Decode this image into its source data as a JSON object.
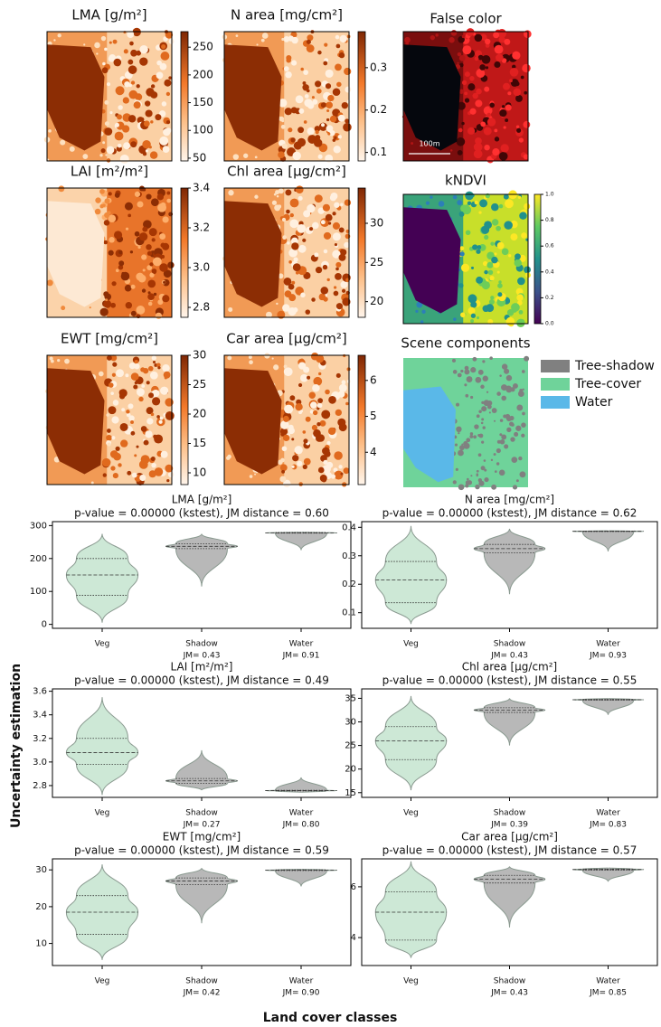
{
  "maps": [
    {
      "title": "LMA [g/m²]",
      "cbar_lim": [
        45,
        278
      ],
      "cbar_ticks": [
        50,
        100,
        150,
        200,
        250
      ]
    },
    {
      "title": "N area [mg/cm²]",
      "cbar_lim": [
        0.08,
        0.385
      ],
      "cbar_ticks": [
        0.1,
        0.2,
        0.3
      ]
    },
    {
      "title": "LAI [m²/m²]",
      "cbar_lim": [
        2.75,
        3.4
      ],
      "cbar_ticks": [
        2.8,
        {
          "value": 3.0,
          "label": "3.0"
        },
        3.2,
        3.4
      ]
    },
    {
      "title": "Chl area [µg/cm²]",
      "cbar_lim": [
        18,
        34.5
      ],
      "cbar_ticks": [
        20,
        25,
        30
      ]
    },
    {
      "title": "EWT [mg/cm²]",
      "cbar_lim": [
        8,
        30
      ],
      "cbar_ticks": [
        10,
        15,
        20,
        25,
        30
      ]
    },
    {
      "title": "Car area [µg/cm²]",
      "cbar_lim": [
        3.1,
        6.7
      ],
      "cbar_ticks": [
        4,
        5,
        6
      ]
    }
  ],
  "false_color": {
    "title": "False color",
    "scale_label": "100m"
  },
  "kndvi": {
    "title": "kNDVI",
    "cbar_lim": [
      0,
      1
    ],
    "cbar_ticks": [
      {
        "value": 0,
        "label": "0.0"
      },
      {
        "value": 0.2,
        "label": "0.2"
      },
      {
        "value": 0.4,
        "label": "0.4"
      },
      {
        "value": 0.6,
        "label": "0.6"
      },
      {
        "value": 0.8,
        "label": "0.8"
      },
      {
        "value": 1,
        "label": "1.0"
      }
    ]
  },
  "scene": {
    "title": "Scene components",
    "legend": [
      {
        "name": "Tree-shadow",
        "color": "#808080"
      },
      {
        "name": "Tree-cover",
        "color": "#6fd39a"
      },
      {
        "name": "Water",
        "color": "#5ab8e8"
      }
    ]
  },
  "y_label": "Uncertainty estimation",
  "x_label": "Land cover classes",
  "chart_data": [
    {
      "type": "violin",
      "title": "LMA [g/m²]",
      "subtitle": "p-value = 0.00000 (kstest), JM distance = 0.60",
      "categories": [
        "Veg",
        "Shadow",
        "Water"
      ],
      "jm_labels": [
        "JM= 0.43",
        "JM= 0.91"
      ],
      "colors": [
        "#cde8d6",
        "#b8b8b8",
        "#b8b8b8"
      ],
      "min": [
        5,
        115,
        225
      ],
      "q1": [
        88,
        230,
        277
      ],
      "median": [
        150,
        237,
        278
      ],
      "q3": [
        200,
        245,
        279
      ],
      "max": [
        275,
        275,
        280
      ],
      "ylim": [
        -12,
        312
      ],
      "yticks": [
        0,
        100,
        200,
        300
      ]
    },
    {
      "type": "violin",
      "title": "N area [mg/cm²]",
      "subtitle": "p-value = 0.00000 (kstest), JM distance = 0.62",
      "categories": [
        "Veg",
        "Shadow",
        "Water"
      ],
      "jm_labels": [
        "JM= 0.43",
        "JM= 0.93"
      ],
      "colors": [
        "#cde8d6",
        "#b8b8b8",
        "#b8b8b8"
      ],
      "min": [
        0.06,
        0.165,
        0.315
      ],
      "q1": [
        0.135,
        0.31,
        0.385
      ],
      "median": [
        0.215,
        0.325,
        0.386
      ],
      "q3": [
        0.28,
        0.34,
        0.387
      ],
      "max": [
        0.405,
        0.395,
        0.388
      ],
      "ylim": [
        0.045,
        0.42
      ],
      "yticks": [
        0.1,
        0.2,
        0.3,
        0.4
      ]
    },
    {
      "type": "violin",
      "title": "LAI [m²/m²]",
      "subtitle": "p-value = 0.00000 (kstest), JM distance = 0.49",
      "categories": [
        "Veg",
        "Shadow",
        "Water"
      ],
      "jm_labels": [
        "JM= 0.27",
        "JM= 0.80"
      ],
      "colors": [
        "#cde8d6",
        "#b8b8b8",
        "#b8b8b8"
      ],
      "min": [
        2.72,
        2.76,
        2.74
      ],
      "q1": [
        2.98,
        2.82,
        2.755
      ],
      "median": [
        3.08,
        2.84,
        2.757
      ],
      "q3": [
        3.2,
        2.86,
        2.76
      ],
      "max": [
        3.55,
        3.1,
        2.87
      ],
      "ylim": [
        2.7,
        3.62
      ],
      "yticks": [
        2.8,
        {
          "value": 3.0,
          "label": "3.0"
        },
        3.2,
        3.4,
        3.6
      ]
    },
    {
      "type": "violin",
      "title": "Chl area [µg/cm²]",
      "subtitle": "p-value = 0.00000 (kstest), JM distance = 0.55",
      "categories": [
        "Veg",
        "Shadow",
        "Water"
      ],
      "jm_labels": [
        "JM= 0.39",
        "JM= 0.83"
      ],
      "colors": [
        "#cde8d6",
        "#b8b8b8",
        "#b8b8b8"
      ],
      "min": [
        15.5,
        25,
        31.5
      ],
      "q1": [
        22,
        32,
        34.6
      ],
      "median": [
        26,
        32.5,
        34.7
      ],
      "q3": [
        29,
        33,
        34.8
      ],
      "max": [
        35.5,
        35,
        35
      ],
      "ylim": [
        14,
        37
      ],
      "yticks": [
        15,
        20,
        25,
        30,
        35
      ]
    },
    {
      "type": "violin",
      "title": "EWT [mg/cm²]",
      "subtitle": "p-value = 0.00000 (kstest), JM distance = 0.59",
      "categories": [
        "Veg",
        "Shadow",
        "Water"
      ],
      "jm_labels": [
        "JM= 0.42",
        "JM= 0.90"
      ],
      "colors": [
        "#cde8d6",
        "#b8b8b8",
        "#b8b8b8"
      ],
      "min": [
        5.5,
        15.5,
        25.5
      ],
      "q1": [
        12.5,
        26,
        29.8
      ],
      "median": [
        18.5,
        27,
        29.9
      ],
      "q3": [
        23,
        27.8,
        30
      ],
      "max": [
        31.5,
        30.5,
        30.2
      ],
      "ylim": [
        4,
        33
      ],
      "yticks": [
        10,
        20,
        30
      ]
    },
    {
      "type": "violin",
      "title": "Car area [µg/cm²]",
      "subtitle": "p-value = 0.00000 (kstest), JM distance = 0.57",
      "categories": [
        "Veg",
        "Shadow",
        "Water"
      ],
      "jm_labels": [
        "JM= 0.43",
        "JM= 0.85"
      ],
      "colors": [
        "#cde8d6",
        "#b8b8b8",
        "#b8b8b8"
      ],
      "min": [
        3.2,
        4.4,
        6.2
      ],
      "q1": [
        3.9,
        6.15,
        6.65
      ],
      "median": [
        5.0,
        6.3,
        6.68
      ],
      "q3": [
        5.8,
        6.45,
        6.7
      ],
      "max": [
        7.0,
        6.8,
        6.75
      ],
      "ylim": [
        2.9,
        7.1
      ],
      "yticks": [
        4,
        6
      ]
    }
  ]
}
